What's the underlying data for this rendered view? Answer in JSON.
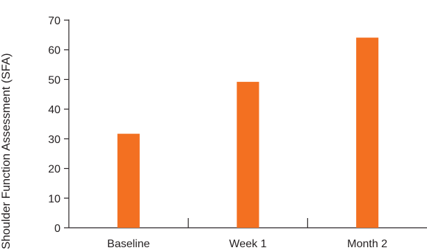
{
  "chart_data": {
    "type": "bar",
    "title": "",
    "xlabel": "",
    "ylabel": "Shoulder Function Assessment (SFA)",
    "categories": [
      "Baseline",
      "Week 1",
      "Month 2"
    ],
    "values": [
      31.7,
      49.2,
      64.1
    ],
    "ylim": [
      0,
      70
    ],
    "yticks": [
      0,
      10,
      20,
      30,
      40,
      50,
      60,
      70
    ],
    "grid": false,
    "legend": "none",
    "bar_color": "#f37021",
    "axis_color": "#231f20"
  }
}
